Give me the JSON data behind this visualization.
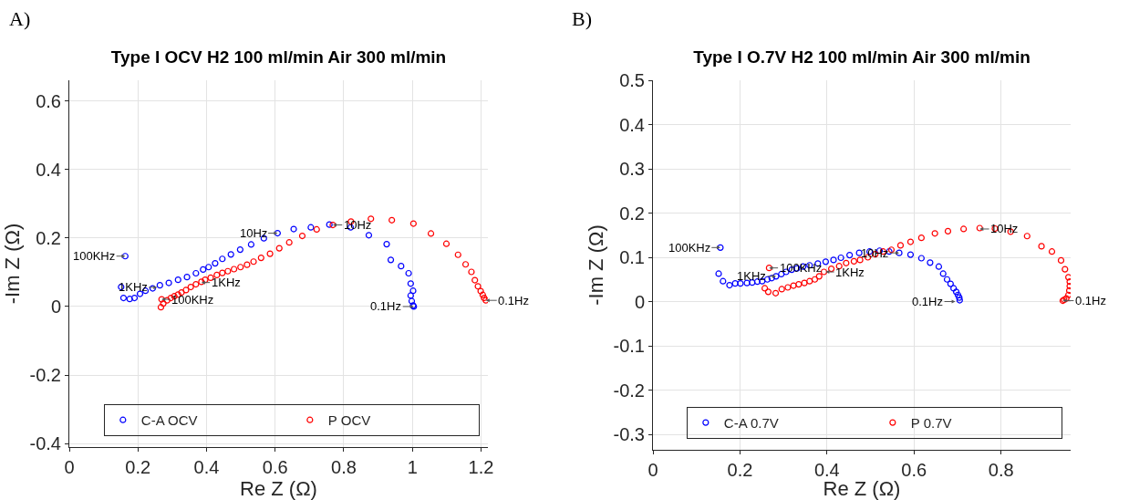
{
  "chart_data": [
    {
      "type": "scatter",
      "title": "Type I OCV H2 100 ml/min Air 300 ml/min",
      "xlabel": "Re Z (Ω)",
      "ylabel": "-Im Z (Ω)",
      "marker": "circle",
      "grid": true,
      "legend": "bottom",
      "xlim": [
        0,
        1.22
      ],
      "ylim": [
        -0.41,
        0.66
      ],
      "xticks": [
        0,
        0.2,
        0.4,
        0.6,
        0.8,
        1,
        1.2
      ],
      "yticks": [
        -0.4,
        -0.2,
        0,
        0.2,
        0.4,
        0.6
      ],
      "series": [
        {
          "name": "C-A OCV",
          "color": "#0000ff",
          "x": [
            0.163,
            0.151,
            0.158,
            0.176,
            0.19,
            0.206,
            0.222,
            0.243,
            0.264,
            0.29,
            0.317,
            0.343,
            0.369,
            0.39,
            0.406,
            0.425,
            0.446,
            0.471,
            0.498,
            0.53,
            0.567,
            0.607,
            0.654,
            0.704,
            0.758,
            0.82,
            0.873,
            0.925,
            0.937,
            0.967,
            0.989,
            0.995,
            1.002,
            0.995,
            0.998,
            1.002,
            1.004
          ],
          "values": [
            0.147,
            0.057,
            0.025,
            0.022,
            0.025,
            0.037,
            0.046,
            0.053,
            0.062,
            0.069,
            0.078,
            0.086,
            0.097,
            0.108,
            0.115,
            0.126,
            0.139,
            0.152,
            0.166,
            0.181,
            0.199,
            0.214,
            0.226,
            0.231,
            0.239,
            0.231,
            0.208,
            0.182,
            0.136,
            0.118,
            0.097,
            0.067,
            0.046,
            0.032,
            0.016,
            0.003,
            0
          ]
        },
        {
          "name": "P OCV",
          "color": "#ff0000",
          "x": [
            0.269,
            0.267,
            0.274,
            0.285,
            0.296,
            0.306,
            0.317,
            0.327,
            0.34,
            0.354,
            0.369,
            0.385,
            0.396,
            0.412,
            0.43,
            0.446,
            0.462,
            0.48,
            0.499,
            0.518,
            0.537,
            0.559,
            0.585,
            0.612,
            0.641,
            0.679,
            0.721,
            0.768,
            0.821,
            0.879,
            0.94,
            1.003,
            1.054,
            1.099,
            1.133,
            1.155,
            1.172,
            1.182,
            1.191,
            1.199,
            1.205,
            1.209,
            1.214
          ],
          "values": [
            0.021,
            -0.002,
            0.009,
            0.018,
            0.025,
            0.03,
            0.035,
            0.041,
            0.048,
            0.057,
            0.065,
            0.072,
            0.078,
            0.084,
            0.092,
            0.098,
            0.103,
            0.109,
            0.115,
            0.122,
            0.131,
            0.142,
            0.154,
            0.17,
            0.187,
            0.206,
            0.225,
            0.238,
            0.248,
            0.256,
            0.252,
            0.242,
            0.213,
            0.183,
            0.151,
            0.123,
            0.101,
            0.077,
            0.059,
            0.045,
            0.034,
            0.025,
            0.018
          ]
        }
      ],
      "annotations": [
        "A)",
        {
          "text": "100KHz",
          "x": 0.163,
          "y": 0.147
        },
        {
          "text": "1KHz",
          "x": 0.256,
          "y": 0.056
        },
        {
          "text": "100KHz",
          "x": 0.269,
          "y": 0.021
        },
        {
          "text": "1KHz",
          "x": 0.385,
          "y": 0.07
        },
        {
          "text": "10Hz",
          "x": 0.607,
          "y": 0.214
        },
        {
          "text": "10Hz",
          "x": 0.768,
          "y": 0.238
        },
        {
          "text": "0.1Hz",
          "x": 1.004,
          "y": 0
        },
        {
          "text": "0.1Hz",
          "x": 1.214,
          "y": 0.018
        }
      ]
    },
    {
      "type": "scatter",
      "title": "Type I O.7V H2 100 ml/min Air 300 ml/min",
      "xlabel": "Re Z (Ω)",
      "ylabel": "-Im Z (Ω)",
      "marker": "circle",
      "grid": true,
      "legend": "bottom",
      "xlim": [
        0,
        0.96
      ],
      "ylim": [
        -0.335,
        0.5
      ],
      "xticks": [
        0,
        0.2,
        0.4,
        0.6,
        0.8
      ],
      "yticks": [
        -0.3,
        -0.2,
        -0.1,
        0,
        0.1,
        0.2,
        0.3,
        0.4,
        0.5
      ],
      "series": [
        {
          "name": "C-A 0.7V",
          "color": "#0000ff",
          "x": [
            0.155,
            0.151,
            0.161,
            0.176,
            0.189,
            0.201,
            0.216,
            0.228,
            0.24,
            0.251,
            0.263,
            0.273,
            0.283,
            0.295,
            0.306,
            0.319,
            0.331,
            0.345,
            0.36,
            0.379,
            0.397,
            0.415,
            0.432,
            0.452,
            0.474,
            0.498,
            0.521,
            0.543,
            0.566,
            0.592,
            0.617,
            0.637,
            0.657,
            0.667,
            0.676,
            0.684,
            0.691,
            0.697,
            0.701,
            0.704,
            0.705
          ],
          "values": [
            0.122,
            0.063,
            0.046,
            0.037,
            0.041,
            0.041,
            0.042,
            0.043,
            0.045,
            0.046,
            0.05,
            0.053,
            0.057,
            0.062,
            0.067,
            0.072,
            0.075,
            0.079,
            0.082,
            0.086,
            0.09,
            0.094,
            0.099,
            0.105,
            0.11,
            0.113,
            0.115,
            0.113,
            0.11,
            0.106,
            0.098,
            0.088,
            0.079,
            0.063,
            0.05,
            0.04,
            0.03,
            0.022,
            0.015,
            0.009,
            0.003
          ]
        },
        {
          "name": "P 0.7V",
          "color": "#ff0000",
          "x": [
            0.267,
            0.257,
            0.265,
            0.282,
            0.296,
            0.31,
            0.323,
            0.335,
            0.348,
            0.36,
            0.372,
            0.382,
            0.393,
            0.41,
            0.428,
            0.444,
            0.462,
            0.476,
            0.494,
            0.511,
            0.529,
            0.548,
            0.569,
            0.592,
            0.617,
            0.648,
            0.678,
            0.714,
            0.751,
            0.786,
            0.822,
            0.86,
            0.893,
            0.917,
            0.938,
            0.947,
            0.955,
            0.958,
            0.958,
            0.957,
            0.955,
            0.95,
            0.945,
            0.942
          ],
          "values": [
            0.076,
            0.03,
            0.022,
            0.019,
            0.028,
            0.032,
            0.036,
            0.039,
            0.042,
            0.046,
            0.05,
            0.057,
            0.067,
            0.074,
            0.08,
            0.087,
            0.091,
            0.094,
            0.1,
            0.107,
            0.113,
            0.117,
            0.127,
            0.135,
            0.144,
            0.154,
            0.159,
            0.164,
            0.166,
            0.165,
            0.158,
            0.148,
            0.125,
            0.113,
            0.093,
            0.073,
            0.055,
            0.045,
            0.035,
            0.025,
            0.015,
            0.007,
            0.004,
            0.002
          ]
        }
      ],
      "annotations": [
        "B)",
        {
          "text": "100KHz",
          "x": 0.155,
          "y": 0.122
        },
        {
          "text": "1KHz",
          "x": 0.283,
          "y": 0.057
        },
        {
          "text": "100KHz",
          "x": 0.267,
          "y": 0.076
        },
        {
          "text": "1KHz",
          "x": 0.397,
          "y": 0.067
        },
        {
          "text": "10Hz",
          "x": 0.566,
          "y": 0.11
        },
        {
          "text": "10Hz",
          "x": 0.751,
          "y": 0.164
        },
        {
          "text": "0.1Hz",
          "x": 0.695,
          "y": 0
        },
        {
          "text": "0.1Hz",
          "x": 0.942,
          "y": 0.002
        }
      ]
    }
  ]
}
